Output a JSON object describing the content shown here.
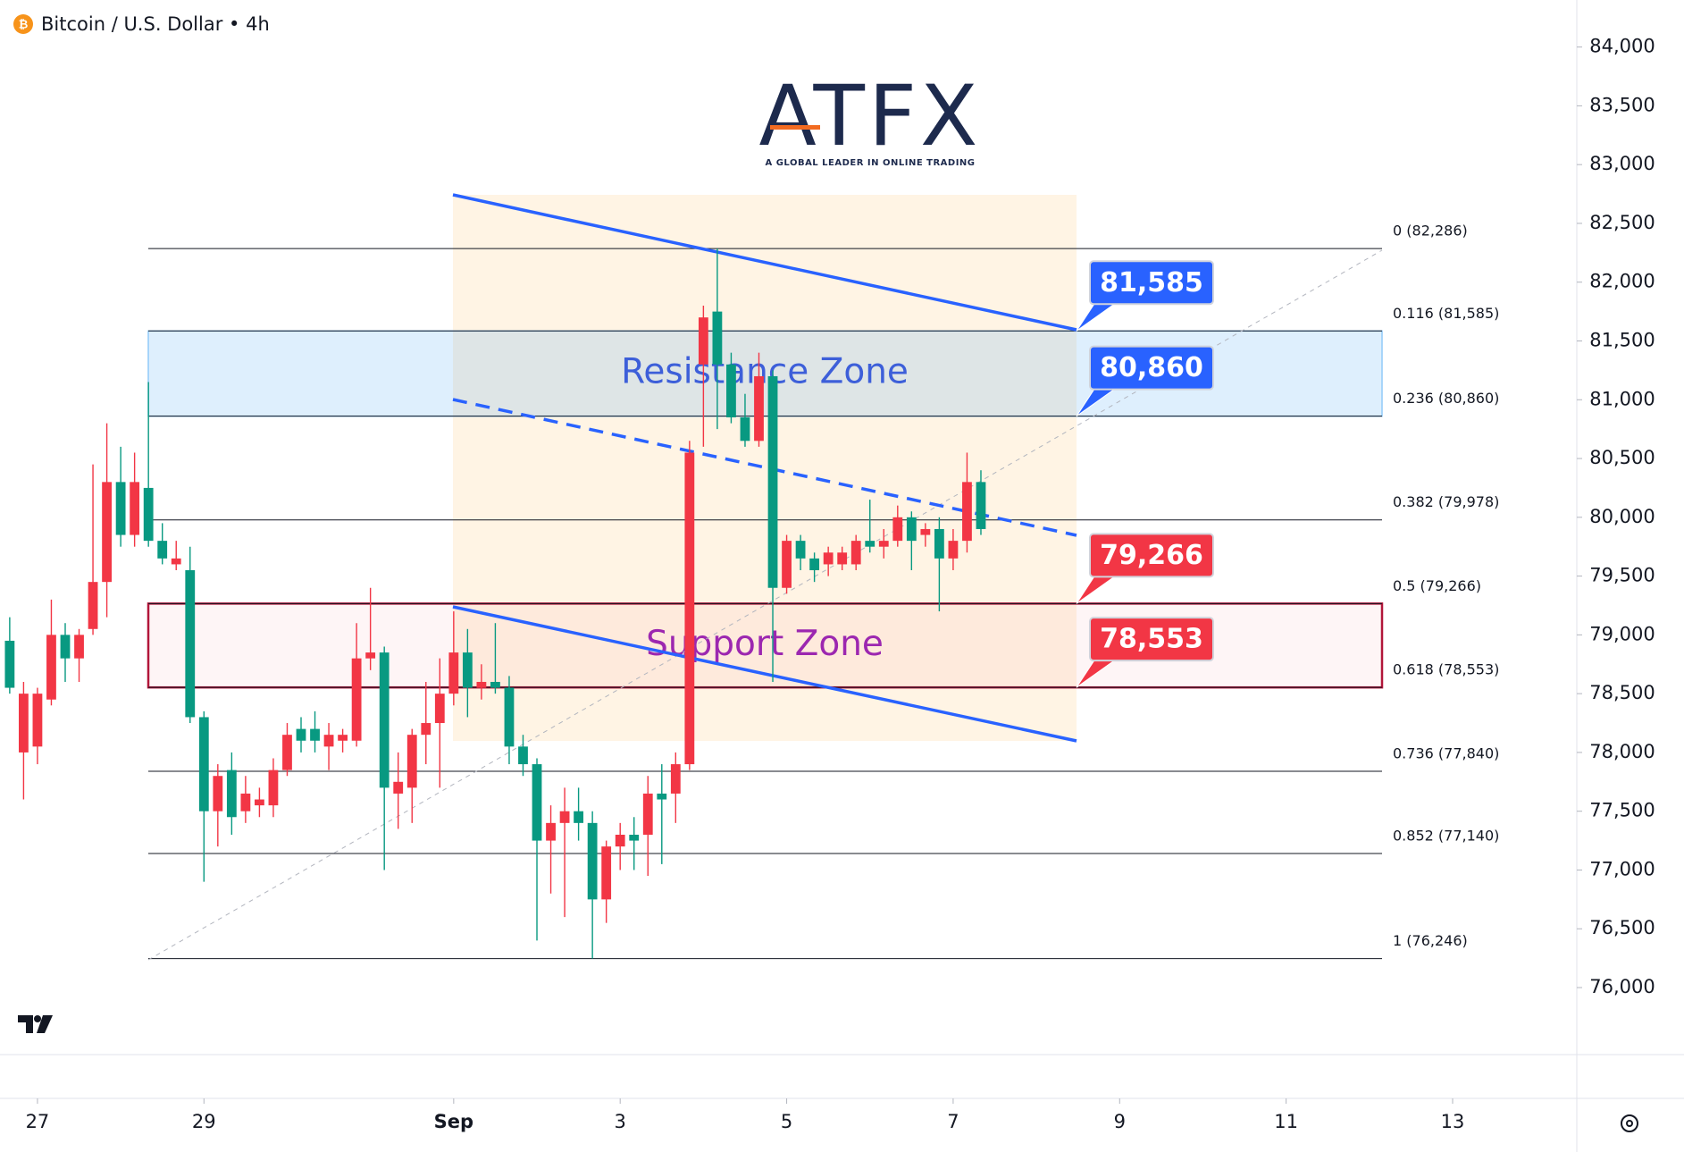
{
  "chart_data": {
    "type": "candlestick",
    "title": "Bitcoin / U.S. Dollar • 4h",
    "watermark": "ATFX",
    "watermark_tagline": "A GLOBAL LEADER IN ONLINE TRADING",
    "up_color": "#089981",
    "down_color": "#f23645",
    "x": [
      -8,
      -4,
      0,
      4,
      8,
      12,
      16,
      20,
      24,
      28,
      32,
      36,
      40,
      44,
      48,
      52,
      56,
      60,
      64,
      68,
      72,
      76,
      80,
      84,
      88,
      92,
      96,
      100,
      104,
      108,
      112,
      116,
      120,
      124,
      128,
      132,
      136,
      140,
      144,
      148,
      152,
      156,
      160,
      164,
      168,
      172,
      176,
      180,
      184,
      188,
      192,
      196,
      200,
      204,
      208,
      212,
      216,
      220,
      224,
      228,
      232,
      236,
      240,
      244,
      248,
      252,
      256,
      260,
      264,
      268,
      272
    ],
    "open": [
      78550,
      78500,
      78500,
      79000,
      78800,
      79000,
      79450,
      80300,
      79850,
      80300,
      79800,
      79650,
      79650,
      78300,
      77500,
      77800,
      77450,
      77650,
      77600,
      77850,
      78150,
      78100,
      78100,
      78150,
      78150,
      78800,
      78850,
      77700,
      77750,
      78150,
      78250,
      78500,
      78850,
      78550,
      78600,
      78550,
      78050,
      77900,
      77250,
      77400,
      77500,
      77400,
      76750,
      77200,
      77300,
      77250,
      77650,
      77600,
      77900,
      80550,
      81700,
      81300,
      80850,
      80650,
      81200,
      79400,
      79800,
      79650,
      79550,
      79700,
      79700,
      79800,
      79750,
      79800,
      80000,
      79800,
      79900,
      79650,
      79800,
      80300,
      79900
    ],
    "high": [
      79150,
      78600,
      78550,
      79300,
      79100,
      79050,
      80450,
      80800,
      80600,
      80550,
      81150,
      79950,
      79800,
      79750,
      78350,
      77900,
      78000,
      77800,
      77700,
      77950,
      78250,
      78300,
      78350,
      78250,
      78200,
      79100,
      79400,
      78900,
      78000,
      78200,
      78600,
      78800,
      79200,
      79050,
      78750,
      79100,
      78650,
      78150,
      77950,
      77550,
      77700,
      77700,
      77500,
      77250,
      77400,
      77450,
      77800,
      77900,
      78000,
      80650,
      81800,
      82286,
      81400,
      81050,
      81400,
      81250,
      79850,
      79850,
      79700,
      79750,
      79750,
      79850,
      80150,
      79900,
      80100,
      80050,
      79950,
      80000,
      79900,
      80550,
      80400
    ],
    "low": [
      78500,
      77600,
      77900,
      78400,
      78600,
      78600,
      79000,
      79150,
      79750,
      79750,
      79750,
      79600,
      79550,
      78250,
      76900,
      77200,
      77300,
      77400,
      77450,
      77450,
      77800,
      78000,
      78000,
      77850,
      78000,
      78050,
      78700,
      77000,
      77350,
      77400,
      77900,
      77700,
      78400,
      78300,
      78450,
      78500,
      77900,
      77800,
      76400,
      76800,
      76600,
      77250,
      76246,
      76550,
      77000,
      77000,
      76950,
      77050,
      77400,
      77850,
      80600,
      80750,
      80800,
      80600,
      80600,
      78600,
      79350,
      79550,
      79450,
      79500,
      79550,
      79550,
      79700,
      79650,
      79750,
      79550,
      79750,
      79200,
      79550,
      79700,
      79850
    ],
    "close": [
      78950,
      78000,
      78050,
      78450,
      79000,
      78800,
      79050,
      79450,
      80300,
      79850,
      80250,
      79800,
      79600,
      79550,
      78300,
      77500,
      77850,
      77500,
      77550,
      77550,
      77850,
      78200,
      78200,
      78050,
      78100,
      78100,
      78800,
      78850,
      77650,
      77700,
      78150,
      78250,
      78500,
      78850,
      78550,
      78600,
      78550,
      78050,
      77900,
      77250,
      77400,
      77500,
      77400,
      76750,
      77200,
      77300,
      77300,
      77650,
      77650,
      77900,
      81300,
      81750,
      81300,
      80850,
      80650,
      81200,
      79400,
      79800,
      79650,
      79600,
      79600,
      79600,
      79800,
      79750,
      79800,
      80000,
      79850,
      79900,
      79650,
      79800,
      80300
    ],
    "xlim": [
      -10.8,
      443.8
    ],
    "ylim": [
      75430,
      84400
    ],
    "xticks": [
      {
        "value": 0,
        "label": "27"
      },
      {
        "value": 48,
        "label": "29"
      },
      {
        "value": 120,
        "label": "Sep"
      },
      {
        "value": 168,
        "label": "3"
      },
      {
        "value": 216,
        "label": "5"
      },
      {
        "value": 264,
        "label": "7"
      },
      {
        "value": 312,
        "label": "9"
      },
      {
        "value": 360,
        "label": "11"
      },
      {
        "value": 408,
        "label": "13"
      }
    ],
    "yticks": [
      {
        "value": 76000,
        "label": "76,000"
      },
      {
        "value": 76500,
        "label": "76,500"
      },
      {
        "value": 77000,
        "label": "77,000"
      },
      {
        "value": 77500,
        "label": "77,500"
      },
      {
        "value": 78000,
        "label": "78,000"
      },
      {
        "value": 78500,
        "label": "78,500"
      },
      {
        "value": 79000,
        "label": "79,000"
      },
      {
        "value": 79500,
        "label": "79,500"
      },
      {
        "value": 80000,
        "label": "80,000"
      },
      {
        "value": 80500,
        "label": "80,500"
      },
      {
        "value": 81000,
        "label": "81,000"
      },
      {
        "value": 81500,
        "label": "81,500"
      },
      {
        "value": 82000,
        "label": "82,000"
      },
      {
        "value": 82500,
        "label": "82,500"
      },
      {
        "value": 83000,
        "label": "83,000"
      },
      {
        "value": 83500,
        "label": "83,500"
      },
      {
        "value": 84000,
        "label": "84,000"
      }
    ],
    "fib_levels": [
      {
        "value": 82286,
        "label": "0 (82,286)"
      },
      {
        "value": 81585,
        "label": "0.116 (81,585)"
      },
      {
        "value": 80860,
        "label": "0.236 (80,860)"
      },
      {
        "value": 79978,
        "label": "0.382 (79,978)"
      },
      {
        "value": 79266,
        "label": "0.5 (79,266)"
      },
      {
        "value": 78553,
        "label": "0.618 (78,553)"
      },
      {
        "value": 77840,
        "label": "0.736 (77,840)"
      },
      {
        "value": 77140,
        "label": "0.852 (77,140)"
      },
      {
        "value": 76246,
        "label": "1 (76,246)"
      }
    ],
    "zones": [
      {
        "label": "Resistance Zone",
        "range": [
          80860,
          81585
        ]
      },
      {
        "label": "Support Zone",
        "range": [
          78553,
          79266
        ]
      }
    ],
    "callouts": {
      "values": [
        81585,
        80860,
        79266,
        78553
      ],
      "value_labels": [
        "81,585",
        "80,860",
        "79,266",
        "78,553"
      ],
      "colors": [
        "#2962ff",
        "#2962ff",
        "#f23645",
        "#f23645"
      ]
    }
  }
}
